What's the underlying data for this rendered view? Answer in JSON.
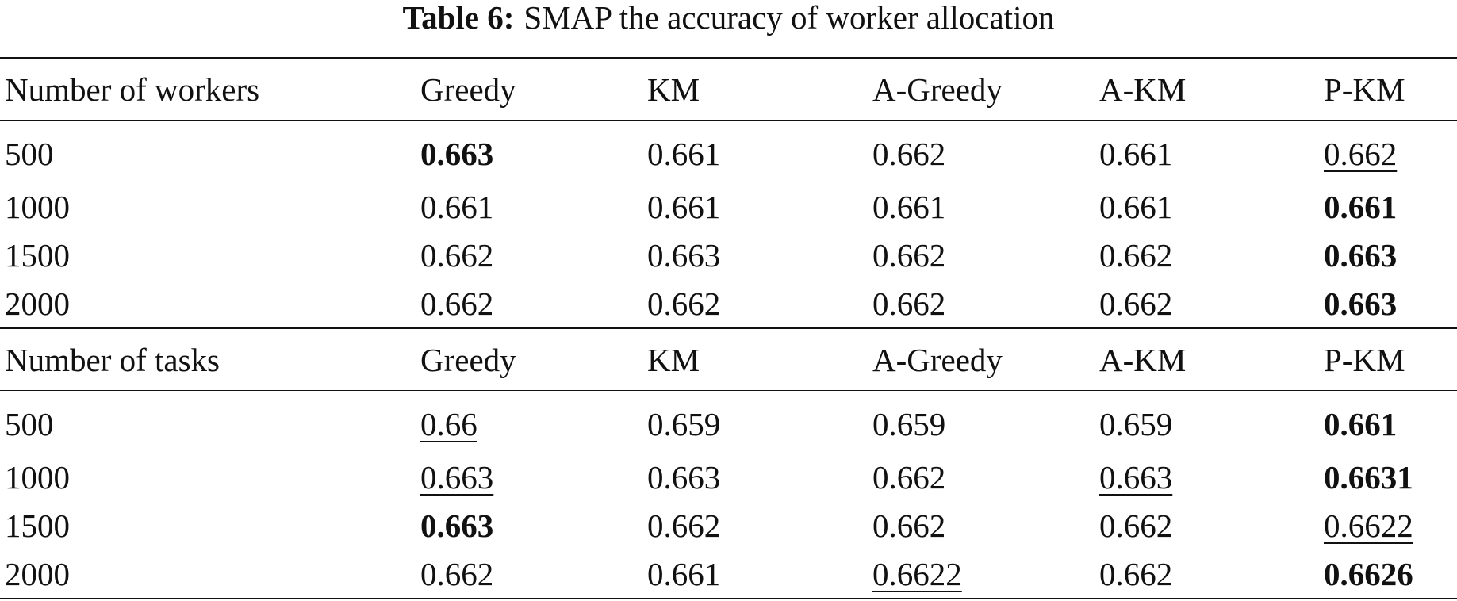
{
  "caption": {
    "label": "Table 6:",
    "text": "SMAP the accuracy of worker allocation"
  },
  "sections": [
    {
      "header": [
        "Number of workers",
        "Greedy",
        "KM",
        "A-Greedy",
        "A-KM",
        "P-KM"
      ],
      "rows": [
        [
          {
            "text": "500"
          },
          {
            "text": "0.663",
            "style": "bold"
          },
          {
            "text": "0.661"
          },
          {
            "text": "0.662"
          },
          {
            "text": "0.661"
          },
          {
            "text": "0.662",
            "style": "underline"
          }
        ],
        [
          {
            "text": "1000"
          },
          {
            "text": "0.661"
          },
          {
            "text": "0.661"
          },
          {
            "text": "0.661"
          },
          {
            "text": "0.661"
          },
          {
            "text": "0.661",
            "style": "bold"
          }
        ],
        [
          {
            "text": "1500"
          },
          {
            "text": "0.662"
          },
          {
            "text": "0.663"
          },
          {
            "text": "0.662"
          },
          {
            "text": "0.662"
          },
          {
            "text": "0.663",
            "style": "bold"
          }
        ],
        [
          {
            "text": "2000"
          },
          {
            "text": "0.662"
          },
          {
            "text": "0.662"
          },
          {
            "text": "0.662"
          },
          {
            "text": "0.662"
          },
          {
            "text": "0.663",
            "style": "bold"
          }
        ]
      ]
    },
    {
      "header": [
        "Number of tasks",
        "Greedy",
        "KM",
        "A-Greedy",
        "A-KM",
        "P-KM"
      ],
      "rows": [
        [
          {
            "text": "500"
          },
          {
            "text": "0.66",
            "style": "underline"
          },
          {
            "text": "0.659"
          },
          {
            "text": "0.659"
          },
          {
            "text": "0.659"
          },
          {
            "text": "0.661",
            "style": "bold"
          }
        ],
        [
          {
            "text": "1000"
          },
          {
            "text": "0.663",
            "style": "underline"
          },
          {
            "text": "0.663"
          },
          {
            "text": "0.662"
          },
          {
            "text": "0.663",
            "style": "underline"
          },
          {
            "text": "0.6631",
            "style": "bold"
          }
        ],
        [
          {
            "text": "1500"
          },
          {
            "text": "0.663",
            "style": "bold"
          },
          {
            "text": "0.662"
          },
          {
            "text": "0.662"
          },
          {
            "text": "0.662"
          },
          {
            "text": "0.6622",
            "style": "underline"
          }
        ],
        [
          {
            "text": "2000"
          },
          {
            "text": "0.662"
          },
          {
            "text": "0.661"
          },
          {
            "text": "0.6622",
            "style": "underline"
          },
          {
            "text": "0.662"
          },
          {
            "text": "0.6626",
            "style": "bold"
          }
        ]
      ]
    }
  ]
}
